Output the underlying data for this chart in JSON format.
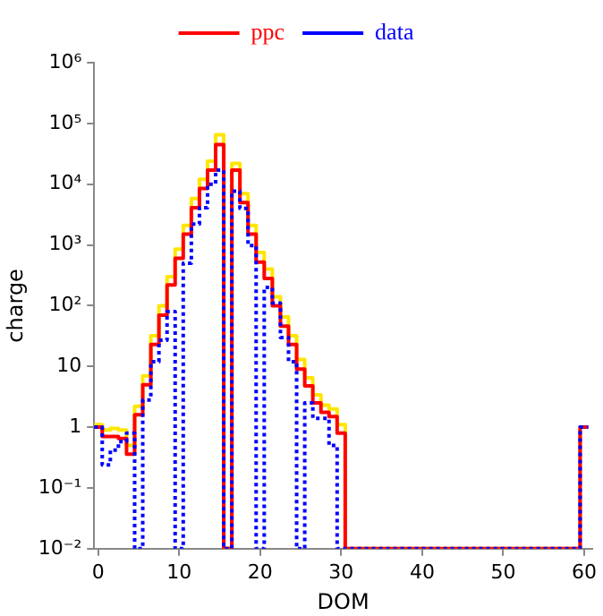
{
  "chart_data": {
    "type": "histogram",
    "xlabel": "DOM",
    "ylabel": "charge",
    "bins": [
      -0.5,
      0.5,
      1.5,
      2.5,
      3.5,
      4.5,
      5.5,
      6.5,
      7.5,
      8.5,
      9.5,
      10.5,
      11.5,
      12.5,
      13.5,
      14.5,
      15.5,
      16.5,
      17.5,
      18.5,
      19.5,
      20.5,
      21.5,
      22.5,
      23.5,
      24.5,
      25.5,
      26.5,
      27.5,
      28.5,
      29.5,
      30.5,
      31.5,
      32.5,
      33.5,
      34.5,
      35.5,
      36.5,
      37.5,
      38.5,
      39.5,
      40.5,
      41.5,
      42.5,
      43.5,
      44.5,
      45.5,
      46.5,
      47.5,
      48.5,
      49.5,
      50.5,
      51.5,
      52.5,
      53.5,
      54.5,
      55.5,
      56.5,
      57.5,
      58.5,
      59.5,
      60.5
    ],
    "series": [
      {
        "color": "#ffe600",
        "line_style": "solid",
        "values": [
          1.1,
          0.9,
          0.95,
          0.9,
          0.5,
          2.2,
          7,
          32,
          100,
          300,
          850,
          2100,
          5800,
          12000,
          24000,
          65000,
          null,
          22000,
          7000,
          2100,
          750,
          400,
          140,
          65,
          32,
          13,
          6.5,
          3.4,
          2.3,
          2,
          1.1,
          null,
          null,
          null,
          null,
          null,
          null,
          null,
          null,
          null,
          null,
          null,
          null,
          null,
          null,
          null,
          null,
          null,
          null,
          null,
          null,
          null,
          null,
          null,
          null,
          null,
          null,
          null,
          null,
          null,
          1
        ]
      },
      {
        "name": "ppc",
        "color": "#ff0000",
        "line_style": "solid",
        "values": [
          1,
          0.7,
          0.7,
          0.65,
          0.36,
          1.6,
          5,
          23,
          70,
          220,
          600,
          1500,
          4100,
          8500,
          17000,
          45000,
          null,
          17000,
          5000,
          1500,
          520,
          280,
          100,
          46,
          23,
          9,
          4.8,
          2.5,
          1.75,
          1.5,
          0.8,
          null,
          null,
          null,
          null,
          null,
          null,
          null,
          null,
          null,
          null,
          null,
          null,
          null,
          null,
          null,
          null,
          null,
          null,
          null,
          null,
          null,
          null,
          null,
          null,
          null,
          null,
          null,
          null,
          null,
          1
        ]
      },
      {
        "name": "data",
        "color": "#0000ff",
        "line_style": "dotted",
        "values": [
          1,
          0.24,
          0.42,
          0.58,
          0.8,
          null,
          2.8,
          12,
          27,
          80,
          null,
          500,
          2200,
          4100,
          10000,
          17000,
          null,
          7700,
          4000,
          980,
          null,
          200,
          110,
          30,
          12,
          null,
          2.5,
          1.4,
          1.4,
          0.5,
          null,
          null,
          null,
          null,
          null,
          null,
          null,
          null,
          null,
          null,
          null,
          null,
          null,
          null,
          null,
          null,
          null,
          null,
          null,
          null,
          null,
          null,
          null,
          null,
          null,
          null,
          null,
          null,
          null,
          null,
          1
        ]
      }
    ],
    "log": "y",
    "xlim": [
      -0.5,
      61
    ],
    "xticks": [
      0,
      10,
      20,
      30,
      40,
      50,
      60
    ],
    "ylim": [
      0.01,
      1000000
    ],
    "yticks": [
      {
        "value": 1000000,
        "label": "10⁶"
      },
      {
        "value": 100000,
        "label": "10⁵"
      },
      {
        "value": 10000,
        "label": "10⁴"
      },
      {
        "value": 1000,
        "label": "10³"
      },
      {
        "value": 100,
        "label": "10²"
      },
      10,
      1,
      {
        "value": 0.1,
        "label": "10⁻¹"
      },
      {
        "value": 0.01,
        "label": "10⁻²"
      }
    ],
    "grid": false,
    "legend": "top"
  }
}
